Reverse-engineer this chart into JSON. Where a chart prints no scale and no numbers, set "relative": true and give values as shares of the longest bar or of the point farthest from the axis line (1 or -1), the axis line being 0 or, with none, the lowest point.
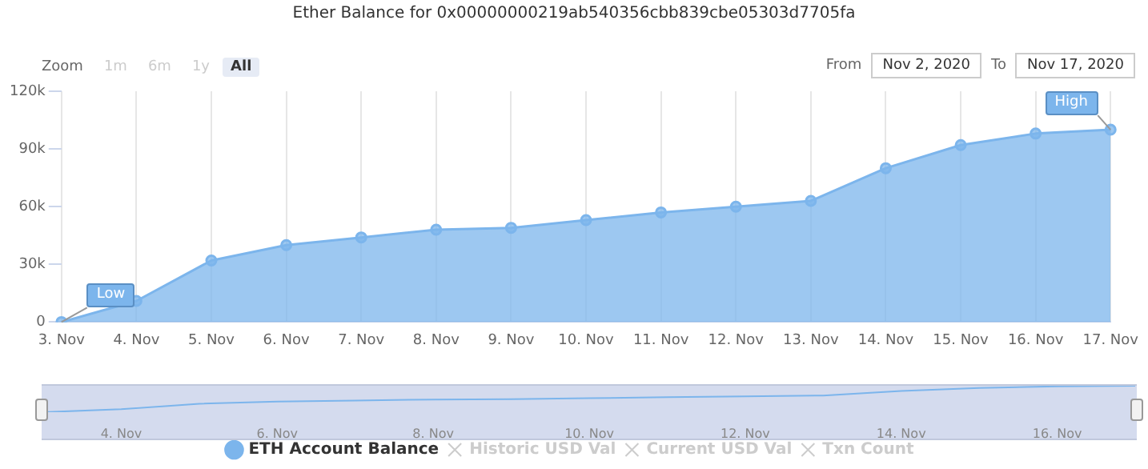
{
  "chart_data": [
    {
      "type": "area",
      "title": "Ether Balance for 0x00000000219ab540356cbb839cbe05303d7705fa",
      "categories": [
        "3. Nov",
        "4. Nov",
        "5. Nov",
        "6. Nov",
        "7. Nov",
        "8. Nov",
        "9. Nov",
        "10. Nov",
        "11. Nov",
        "12. Nov",
        "13. Nov",
        "14. Nov",
        "15. Nov",
        "16. Nov",
        "17. Nov"
      ],
      "series": [
        {
          "name": "ETH Account Balance",
          "color": "#7cb5ec",
          "values": [
            0,
            11000,
            32000,
            40000,
            44000,
            48000,
            49000,
            53000,
            57000,
            60000,
            63000,
            80000,
            92000,
            98000,
            100000
          ]
        },
        {
          "name": "Historic USD Val",
          "color": "#cccccc",
          "type": "line",
          "values": [
            null,
            null,
            null,
            null,
            null,
            null,
            null,
            null,
            null,
            null,
            null,
            null,
            null,
            null,
            null
          ]
        },
        {
          "name": "Current USD Val",
          "color": "#cccccc",
          "type": "line",
          "values": [
            null,
            null,
            null,
            null,
            null,
            null,
            null,
            null,
            null,
            null,
            null,
            null,
            null,
            null,
            null
          ]
        },
        {
          "name": "Txn Count",
          "color": "#cccccc",
          "type": "line",
          "values": [
            null,
            null,
            null,
            null,
            null,
            null,
            null,
            null,
            null,
            null,
            null,
            null,
            null,
            null,
            null
          ]
        }
      ],
      "ylim": [
        0,
        120000
      ],
      "yticks": [
        {
          "value": 0,
          "label": "0"
        },
        {
          "value": 30000,
          "label": "30k"
        },
        {
          "value": 60000,
          "label": "60k"
        },
        {
          "value": 90000,
          "label": "90k"
        },
        {
          "value": 120000,
          "label": "120k"
        }
      ],
      "grid": "x",
      "legend": "bottom",
      "marker": "circle",
      "annotations": [
        "Zoom",
        "1m",
        "6m",
        "1y",
        "All",
        "From",
        "Nov 2, 2020",
        "To",
        "Nov 17, 2020",
        {
          "text": "Low",
          "x": "3. Nov",
          "y": 0
        },
        {
          "text": "High",
          "x": "17. Nov",
          "y": 100000
        }
      ]
    },
    {
      "type": "line",
      "relative": true,
      "categories": [
        null,
        "4. Nov",
        null,
        "6. Nov",
        null,
        "8. Nov",
        null,
        "10. Nov",
        null,
        "12. Nov",
        null,
        "14. Nov",
        null,
        "16. Nov",
        null
      ],
      "series": [
        {
          "color": "#7cb5ec",
          "values": [
            0,
            0.11,
            0.32,
            0.4,
            0.44,
            0.48,
            0.49,
            0.53,
            0.57,
            0.6,
            0.63,
            0.8,
            0.92,
            0.98,
            1
          ]
        }
      ]
    }
  ]
}
